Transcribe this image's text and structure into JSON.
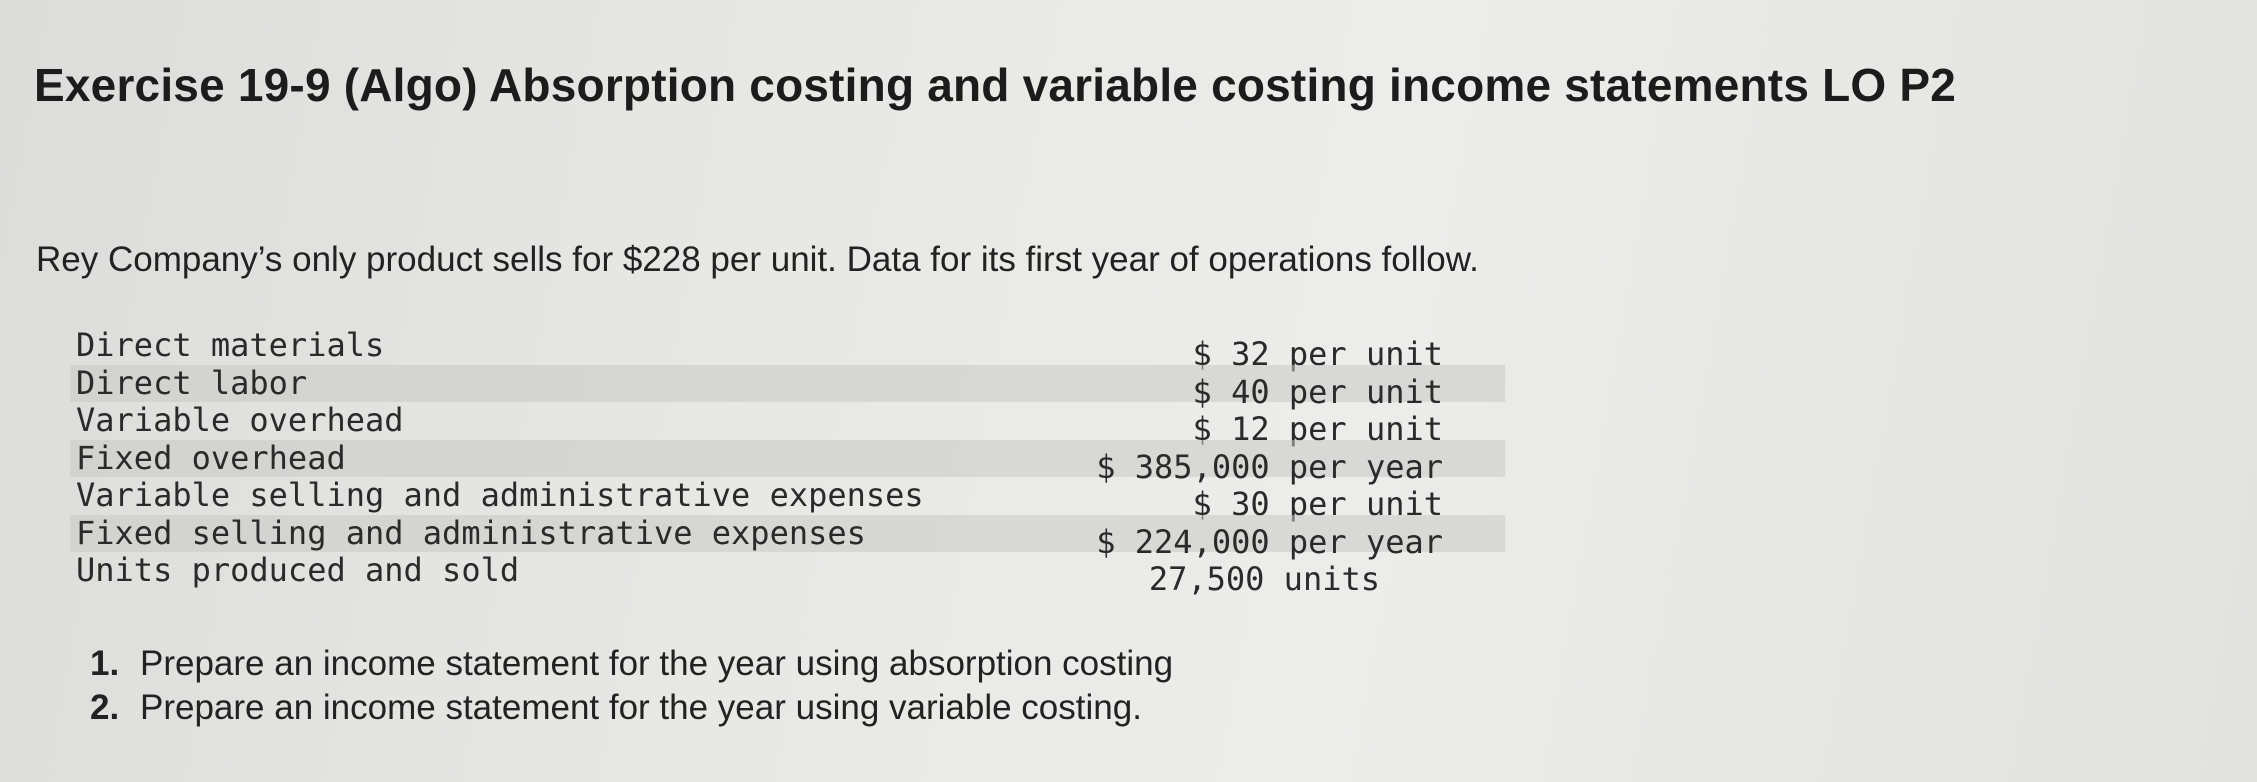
{
  "title": "Exercise 19-9 (Algo) Absorption costing and variable costing income statements LO P2",
  "intro": "Rey Company’s only product sells for $228 per unit. Data for its first year of operations follow.",
  "data_rows": [
    {
      "label": "Direct materials",
      "value": "$ 32 per unit"
    },
    {
      "label": "Direct labor",
      "value": "$ 40 per unit"
    },
    {
      "label": "Variable overhead",
      "value": "$ 12 per unit"
    },
    {
      "label": "Fixed overhead",
      "value": "$ 385,000 per year"
    },
    {
      "label": "Variable selling and administrative expenses",
      "value": "$ 30 per unit"
    },
    {
      "label": "Fixed selling and administrative expenses",
      "value": "$ 224,000 per year"
    },
    {
      "label": "Units produced and sold",
      "value": "27,500 units"
    }
  ],
  "tasks": [
    {
      "number": "1.",
      "text": "Prepare an income statement for the year using absorption costing"
    },
    {
      "number": "2.",
      "text": "Prepare an income statement for the year using variable costing."
    }
  ]
}
